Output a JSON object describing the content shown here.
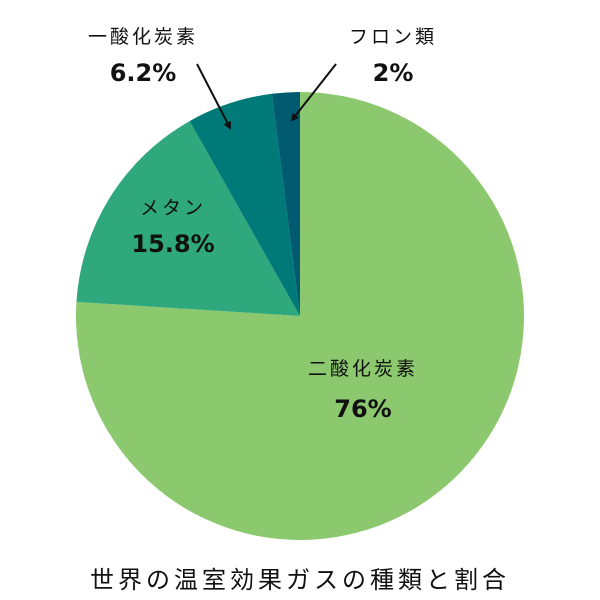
{
  "title": "世界の温室効果ガスの種類と割合",
  "chart_data": {
    "type": "pie",
    "title": "世界の温室効果ガスの種類と割合",
    "start_angle": "12 o'clock, clockwise",
    "categories": [
      "二酸化炭素",
      "メタン",
      "一酸化炭素",
      "フロン類"
    ],
    "values": [
      76,
      15.8,
      6.2,
      2
    ],
    "unit": "%",
    "value_labels": [
      "76%",
      "15.8%",
      "6.2%",
      "2%"
    ],
    "colors": [
      "#8bc86e",
      "#2ea87c",
      "#007a78",
      "#005a70"
    ],
    "legend": "none (direct labels, callout arrows for small slices)"
  },
  "labels": {
    "co2": {
      "name": "二酸化炭素",
      "value": "76%"
    },
    "ch4": {
      "name": "メタン",
      "value": "15.8%"
    },
    "co": {
      "name": "一酸化炭素",
      "value": "6.2%"
    },
    "cfc": {
      "name": "フロン類",
      "value": "2%"
    }
  }
}
